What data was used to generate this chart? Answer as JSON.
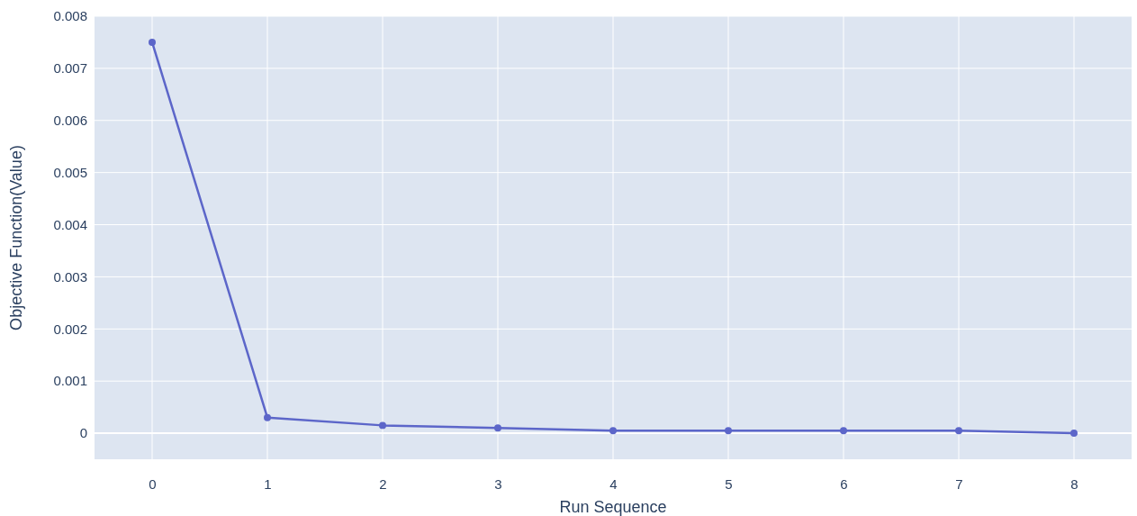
{
  "chart_data": {
    "type": "line",
    "xlabel": "Run Sequence",
    "ylabel": "Objective Function(Value)",
    "x": [
      0,
      1,
      2,
      3,
      4,
      5,
      6,
      7,
      8
    ],
    "series": [
      {
        "color": "#5c66c9",
        "values": [
          0.0075,
          0.0003,
          0.00015,
          0.0001,
          5e-05,
          5e-05,
          5e-05,
          5e-05,
          0
        ]
      }
    ],
    "xlim": [
      -0.5,
      8.5
    ],
    "xticks": [
      0,
      1,
      2,
      3,
      4,
      5,
      6,
      7,
      8
    ],
    "ylim": [
      -0.0005,
      0.008
    ],
    "yticks": [
      0,
      0.001,
      0.002,
      0.003,
      0.004,
      0.005,
      0.006,
      0.007,
      0.008
    ],
    "grid": true,
    "marker": "circle",
    "line_style": "solid"
  }
}
